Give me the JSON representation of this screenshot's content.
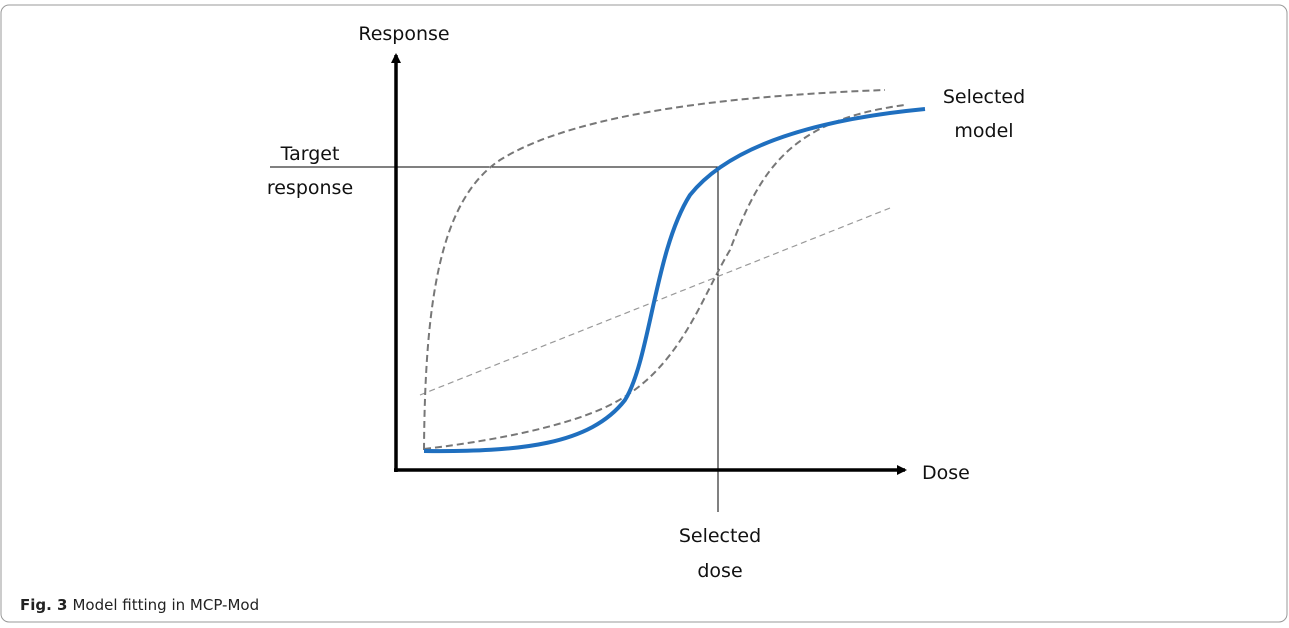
{
  "diagram": {
    "y_axis_label": "Response",
    "x_axis_label": "Dose",
    "target_response": [
      "Target",
      "response"
    ],
    "selected_model": [
      "Selected",
      "model"
    ],
    "selected_dose": [
      "Selected",
      "dose"
    ]
  },
  "caption": {
    "label": "Fig. 3",
    "text": "Model fitting in MCP-Mod"
  }
}
